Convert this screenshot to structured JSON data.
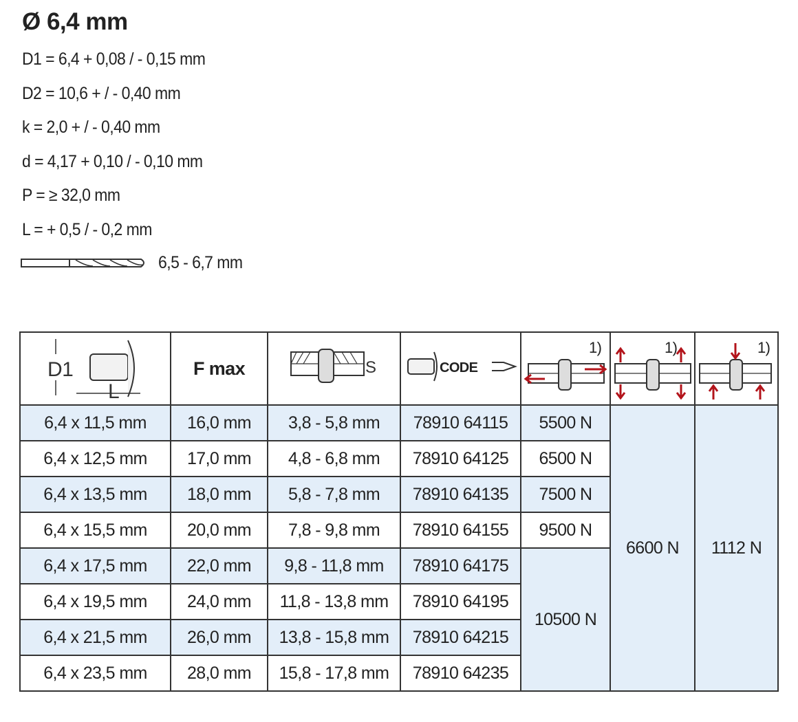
{
  "title": "Ø 6,4 mm",
  "specs": [
    "D1 = 6,4  + 0,08 / - 0,15 mm",
    "D2 = 10,6 + / - 0,40 mm",
    "k = 2,0 + / - 0,40 mm",
    "d = 4,17 + 0,10 / - 0,10 mm",
    "P = ≥ 32,0 mm",
    "L = + 0,5 / - 0,2 mm"
  ],
  "drill": {
    "icon": "drill-bit-icon",
    "label": "6,5 - 6,7 mm"
  },
  "table": {
    "headers": {
      "dimension_icon_labels": {
        "d1": "D1",
        "l": "L"
      },
      "fmax": "F max",
      "grip_icon_label": "S",
      "code_icon_label": "CODE",
      "footnote": "1)"
    },
    "rows": [
      {
        "size": "6,4 x 11,5 mm",
        "fmax": "16,0 mm",
        "grip": "3,8 - 5,8 mm",
        "code": "78910 64115",
        "shear": "5500 N"
      },
      {
        "size": "6,4 x 12,5 mm",
        "fmax": "17,0 mm",
        "grip": "4,8 - 6,8 mm",
        "code": "78910 64125",
        "shear": "6500 N"
      },
      {
        "size": "6,4 x 13,5 mm",
        "fmax": "18,0 mm",
        "grip": "5,8 - 7,8 mm",
        "code": "78910 64135",
        "shear": "7500 N"
      },
      {
        "size": "6,4 x 15,5 mm",
        "fmax": "20,0 mm",
        "grip": "7,8 - 9,8 mm",
        "code": "78910 64155",
        "shear": "9500 N"
      },
      {
        "size": "6,4 x 17,5 mm",
        "fmax": "22,0 mm",
        "grip": "9,8 - 11,8 mm",
        "code": "78910 64175"
      },
      {
        "size": "6,4 x 19,5 mm",
        "fmax": "24,0 mm",
        "grip": "11,8 - 13,8 mm",
        "code": "78910 64195"
      },
      {
        "size": "6,4 x 21,5 mm",
        "fmax": "26,0 mm",
        "grip": "13,8 - 15,8 mm",
        "code": "78910 64215"
      },
      {
        "size": "6,4 x 23,5 mm",
        "fmax": "28,0 mm",
        "grip": "15,8 - 17,8 mm",
        "code": "78910 64235"
      }
    ],
    "shear_merged": "10500 N",
    "tensile": "6600 N",
    "head_pull": "1112 N"
  },
  "colors": {
    "row_blue": "#e3eef9",
    "arrow_red": "#b3141b",
    "border": "#333333"
  }
}
